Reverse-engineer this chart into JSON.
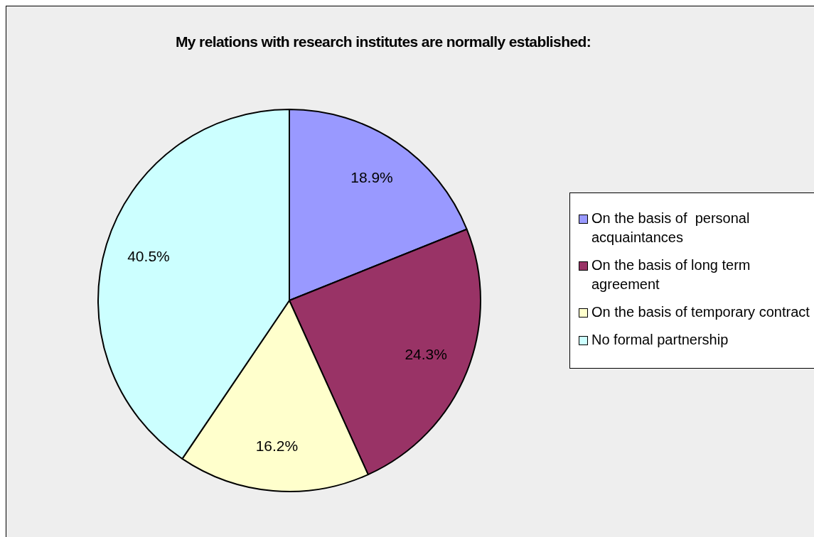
{
  "chart_data": {
    "type": "pie",
    "title": "My relations with research institutes are normally established:",
    "categories": [
      "On the basis of  personal acquaintances",
      "On the basis of long term agreement",
      "On the basis of temporary contract",
      "No formal partnership"
    ],
    "values": [
      18.9,
      24.3,
      16.2,
      40.5
    ],
    "colors": [
      "#9999ff",
      "#993366",
      "#ffffcc",
      "#ccffff"
    ],
    "value_labels": [
      "18.9%",
      "24.3%",
      "16.2%",
      "40.5%"
    ],
    "legend": "right"
  }
}
